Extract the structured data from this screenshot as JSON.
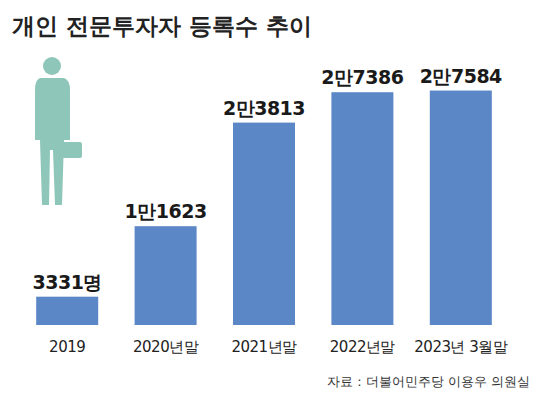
{
  "chart_data": {
    "type": "bar",
    "title": "개인 전문투자자 등록수 추이",
    "source": "자료 : 더불어민주당 이용우 의원실",
    "categories": [
      "2019",
      "2020년말",
      "2021년말",
      "2022년말",
      "2023년 3월말"
    ],
    "values": [
      3331,
      11623,
      23813,
      27386,
      27584
    ],
    "value_labels": [
      "3331명",
      "1만1623",
      "2만3813",
      "2만7386",
      "2만7584"
    ],
    "color": "#5b87c7",
    "ylim": [
      0,
      30000
    ],
    "data_labels": true,
    "tick_labels": "x",
    "grid": false
  }
}
